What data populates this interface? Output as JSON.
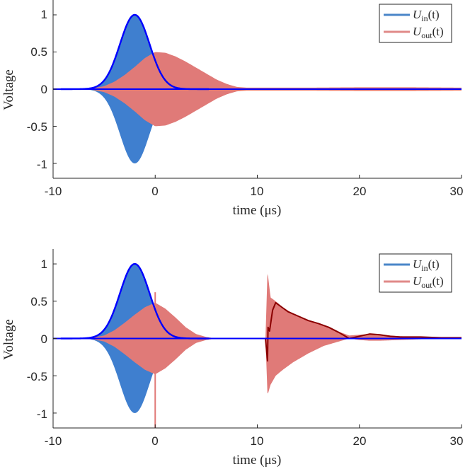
{
  "chart_data": [
    {
      "type": "line",
      "panel": "top",
      "xlabel": "time (μs)",
      "ylabel": "Voltage",
      "xlim": [
        -10,
        30
      ],
      "ylim": [
        -1.2,
        1.2
      ],
      "xticks": [
        -10,
        0,
        10,
        20,
        30
      ],
      "xtick_labels": [
        "-10",
        "0",
        "10",
        "20",
        "30"
      ],
      "yticks": [
        1,
        0.5,
        0,
        -0.5,
        -1
      ],
      "ytick_labels": [
        "1",
        "0.5",
        "0",
        "-0.5",
        "-1"
      ],
      "legend_position": "top-right",
      "series": [
        {
          "name": "U_in(t)",
          "legend_main": "U",
          "legend_sub": "in",
          "legend_arg": "(t)",
          "legend_color": "#4a86c8",
          "fill_color": "#3f7fcf",
          "envelope_color": "#0000ff",
          "envelope": {
            "shape": "gaussian",
            "peak": 1.0,
            "center": -2.0,
            "sigma": 1.45
          }
        },
        {
          "name": "U_out(t)",
          "legend_main": "U",
          "legend_sub": "out",
          "legend_arg": "(t)",
          "legend_color": "#e08a88",
          "fill_color": "#e07a78",
          "envelope": {
            "x": [
              -6.5,
              -5,
              -4,
              -3,
              -2,
              -1,
              0,
              1,
              2,
              3,
              4,
              5,
              6,
              7,
              8,
              9,
              10,
              15,
              20,
              25,
              30
            ],
            "y": [
              0.0,
              0.04,
              0.1,
              0.19,
              0.3,
              0.42,
              0.5,
              0.49,
              0.44,
              0.37,
              0.29,
              0.21,
              0.13,
              0.07,
              0.03,
              0.02,
              0.02,
              0.02,
              0.025,
              0.025,
              0.02
            ]
          }
        }
      ]
    },
    {
      "type": "line",
      "panel": "bottom",
      "xlabel": "time (μs)",
      "ylabel": "Voltage",
      "xlim": [
        -10,
        30
      ],
      "ylim": [
        -1.2,
        1.2
      ],
      "xticks": [
        -10,
        0,
        10,
        20,
        30
      ],
      "xtick_labels": [
        "-10",
        "0",
        "10",
        "20",
        "30"
      ],
      "yticks": [
        1,
        0.5,
        0,
        -0.5,
        -1
      ],
      "ytick_labels": [
        "1",
        "0.5",
        "0",
        "-0.5",
        "-1"
      ],
      "legend_position": "top-right",
      "series": [
        {
          "name": "U_in(t)",
          "legend_main": "U",
          "legend_sub": "in",
          "legend_arg": "(t)",
          "legend_color": "#4a86c8",
          "fill_color": "#3f7fcf",
          "envelope_color": "#0000ff",
          "envelope": {
            "shape": "gaussian",
            "peak": 1.0,
            "center": -2.0,
            "sigma": 1.45
          }
        },
        {
          "name": "U_out(t)",
          "legend_main": "U",
          "legend_sub": "out",
          "legend_arg": "(t)",
          "legend_color": "#e08a88",
          "fill_color": "#e07a78",
          "segments": [
            {
              "x": [
                -6.5,
                -5,
                -4,
                -3,
                -2,
                -1,
                0,
                1,
                2,
                3,
                4,
                5,
                6
              ],
              "y": [
                0.0,
                0.04,
                0.11,
                0.21,
                0.32,
                0.42,
                0.48,
                0.4,
                0.28,
                0.15,
                0.06,
                0.02,
                0.0
              ]
            },
            {
              "x": [
                10.8,
                11.0,
                11.3,
                11.8,
                12.5,
                13.5,
                15,
                16.5,
                18,
                19,
                20,
                21,
                22,
                24,
                26,
                28,
                30
              ],
              "y": [
                0.0,
                0.9,
                0.55,
                0.5,
                0.42,
                0.33,
                0.24,
                0.17,
                0.09,
                0.04,
                0.05,
                0.06,
                0.05,
                0.03,
                0.02,
                0.02,
                0.02
              ],
              "y_low": [
                0.0,
                -0.76,
                -0.62,
                -0.5,
                -0.42,
                -0.32,
                -0.2,
                -0.1,
                -0.04,
                0.0,
                -0.02,
                -0.03,
                -0.03,
                -0.02,
                -0.01,
                -0.01,
                -0.01
              ]
            }
          ],
          "spike": {
            "x": 0.0,
            "top": 0.62,
            "bottom": -1.2
          }
        },
        {
          "name": "output mean",
          "color": "#8b0000",
          "x": [
            10.8,
            11.0,
            11.05,
            11.2,
            11.5,
            11.8,
            12.2,
            13,
            14,
            15,
            16,
            17,
            18,
            19,
            20,
            21,
            22,
            23,
            24,
            26,
            28,
            30
          ],
          "y": [
            0.0,
            -0.3,
            0.15,
            0.1,
            0.38,
            0.48,
            0.44,
            0.36,
            0.3,
            0.24,
            0.2,
            0.15,
            0.08,
            0.0,
            0.03,
            0.06,
            0.05,
            0.03,
            0.02,
            0.02,
            0.01,
            0.01
          ]
        }
      ]
    }
  ]
}
